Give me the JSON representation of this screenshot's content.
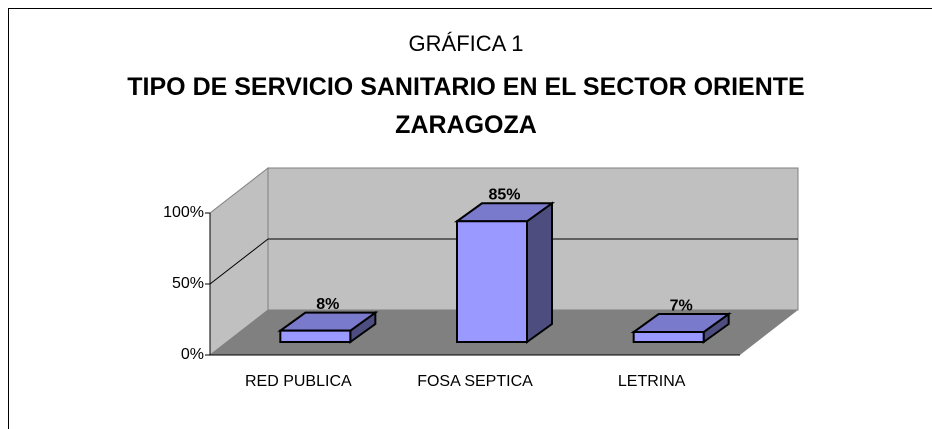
{
  "chart_data": {
    "type": "bar3d",
    "heading": "GRÁFICA 1",
    "title": "TIPO DE SERVICIO SANITARIO EN EL SECTOR ORIENTE ZARAGOZA",
    "categories": [
      "RED PUBLICA",
      "FOSA SEPTICA",
      "LETRINA"
    ],
    "values": [
      8,
      85,
      7
    ],
    "value_labels": [
      "8%",
      "85%",
      "7%"
    ],
    "color": "#9999ff",
    "ylim": [
      0,
      100
    ],
    "yticks": [
      {
        "value": 0,
        "label": "0%"
      },
      {
        "value": 50,
        "label": "50%"
      },
      {
        "value": 100,
        "label": "100%"
      }
    ],
    "grid": true
  }
}
